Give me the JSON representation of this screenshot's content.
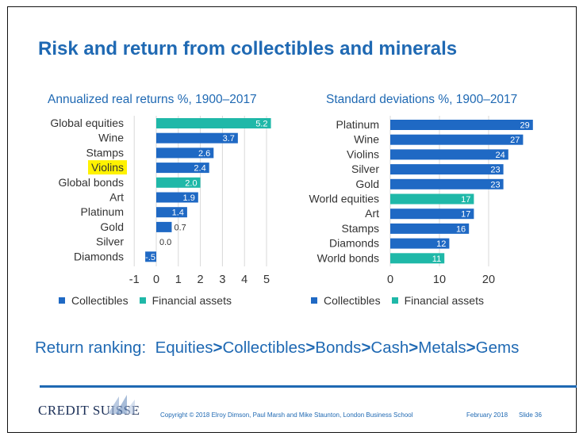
{
  "title": "Risk and return from collectibles and minerals",
  "colors": {
    "collectibles": "#1f69c4",
    "financial": "#1fb8a8",
    "highlight": "#fff200",
    "accent": "#1f69b3"
  },
  "chart_data": [
    {
      "type": "bar",
      "orientation": "horizontal",
      "title": "Annualized real returns %, 1900–2017",
      "categories": [
        "Global equities",
        "Wine",
        "Stamps",
        "Violins",
        "Global bonds",
        "Art",
        "Platinum",
        "Gold",
        "Silver",
        "Diamonds"
      ],
      "values": [
        5.2,
        3.7,
        2.6,
        2.4,
        2.0,
        1.9,
        1.4,
        0.7,
        0.0,
        -0.5
      ],
      "labels": [
        "5.2",
        "3.7",
        "2.6",
        "2.4",
        "2.0",
        "1.9",
        "1.4",
        "0.7",
        "0.0",
        "-.5"
      ],
      "groups": [
        "Financial assets",
        "Collectibles",
        "Collectibles",
        "Collectibles",
        "Financial assets",
        "Collectibles",
        "Collectibles",
        "Collectibles",
        "Collectibles",
        "Collectibles"
      ],
      "highlighted": "Violins",
      "xlim": [
        -1,
        5
      ],
      "xticks": [
        "-1",
        "0",
        "1",
        "2",
        "3",
        "4",
        "5"
      ],
      "legend": [
        "Collectibles",
        "Financial assets"
      ]
    },
    {
      "type": "bar",
      "orientation": "horizontal",
      "title": "Standard deviations %, 1900–2017",
      "categories": [
        "Platinum",
        "Wine",
        "Violins",
        "Silver",
        "Gold",
        "World equities",
        "Art",
        "Stamps",
        "Diamonds",
        "World bonds"
      ],
      "values": [
        29,
        27,
        24,
        23,
        23,
        17,
        17,
        16,
        12,
        11
      ],
      "labels": [
        "29",
        "27",
        "24",
        "23",
        "23",
        "17",
        "17",
        "16",
        "12",
        "11"
      ],
      "groups": [
        "Collectibles",
        "Collectibles",
        "Collectibles",
        "Collectibles",
        "Collectibles",
        "Financial assets",
        "Collectibles",
        "Collectibles",
        "Collectibles",
        "Financial assets"
      ],
      "xlim": [
        0,
        29
      ],
      "xticks": [
        "0",
        "10",
        "20"
      ],
      "legend": [
        "Collectibles",
        "Financial assets"
      ]
    }
  ],
  "ranking": {
    "prefix": "Return ranking:  ",
    "items": [
      "Equities",
      "Collectibles",
      "Bonds",
      "Cash",
      "Metals",
      "Gems"
    ],
    "separator": ">"
  },
  "footer": {
    "logo": "CREDIT SUISSE",
    "copyright": "Copyright © 2018 Elroy Dimson, Paul Marsh and Mike Staunton, London Business School",
    "date": "February 2018",
    "slide": "Slide 36"
  }
}
